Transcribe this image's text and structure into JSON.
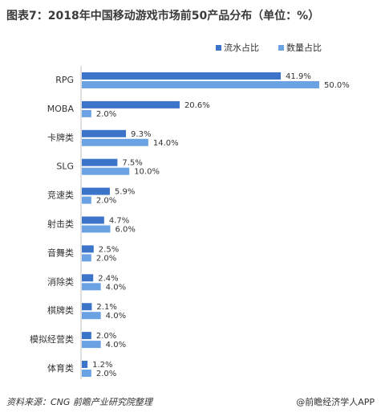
{
  "title": "图表7：2018年中国移动游戏市场前50产品分布（单位：%）",
  "source": "资料来源：CNG 前瞻产业研究院整理",
  "credit": "@前瞻经济学人APP",
  "chart_data": {
    "type": "bar",
    "orientation": "horizontal",
    "categories": [
      "RPG",
      "MOBA",
      "卡牌类",
      "SLG",
      "竞速类",
      "射击类",
      "音舞类",
      "消除类",
      "棋牌类",
      "模拟经营类",
      "体育类"
    ],
    "series": [
      {
        "name": "流水占比",
        "color": "#3b74c9",
        "values": [
          41.9,
          20.6,
          9.3,
          7.5,
          5.9,
          4.7,
          2.5,
          2.4,
          2.1,
          2.0,
          1.2
        ]
      },
      {
        "name": "数量占比",
        "color": "#6aa2e4",
        "values": [
          50.0,
          2.0,
          14.0,
          10.0,
          2.0,
          6.0,
          2.0,
          4.0,
          4.0,
          4.0,
          2.0
        ]
      }
    ],
    "value_format": "{v}%",
    "legend_position": "top-right",
    "xlim": [
      0,
      50
    ],
    "grid": false
  }
}
